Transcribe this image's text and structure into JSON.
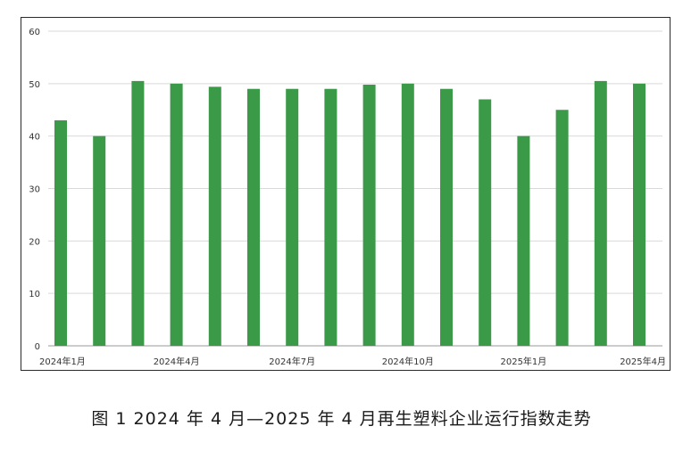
{
  "caption": "图 1 2024 年 4 月—2025 年 4 月再生塑料企业运行指数走势",
  "chart_data": {
    "type": "bar",
    "title": "",
    "xlabel": "",
    "ylabel": "",
    "ylim": [
      0,
      60
    ],
    "yticks": [
      0,
      10,
      20,
      30,
      40,
      50,
      60
    ],
    "grid": true,
    "legend": "none",
    "bar_color": "#3a9a48",
    "categories": [
      "2024年1月",
      "2024年2月",
      "2024年3月",
      "2024年4月",
      "2024年5月",
      "2024年6月",
      "2024年7月",
      "2024年8月",
      "2024年9月",
      "2024年10月",
      "2024年11月",
      "2024年12月",
      "2025年1月",
      "2025年2月",
      "2025年3月",
      "2025年4月"
    ],
    "x_tick_labels": [
      "2024年1月",
      "",
      "",
      "2024年4月",
      "",
      "",
      "2024年7月",
      "",
      "",
      "2024年10月",
      "",
      "",
      "2025年1月",
      "",
      "",
      "2025年4月"
    ],
    "values": [
      43,
      40,
      50.5,
      50,
      49.4,
      49,
      49,
      49,
      49.8,
      50,
      49,
      47,
      40,
      45,
      50.5,
      50
    ]
  }
}
